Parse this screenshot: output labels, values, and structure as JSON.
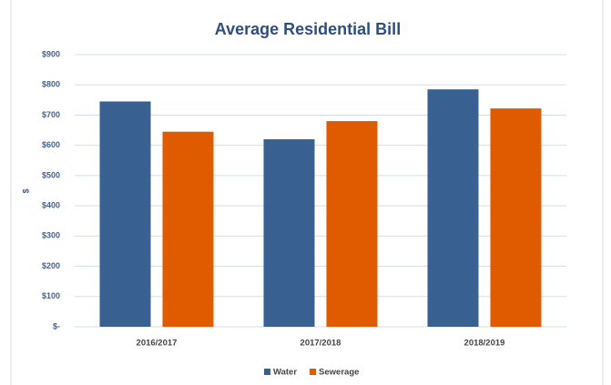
{
  "chart_data": {
    "type": "bar",
    "title": "Average Residential Bill",
    "y_label": "$",
    "categories": [
      "2016/2017",
      "2017/2018",
      "2018/2019"
    ],
    "series": [
      {
        "name": "Water",
        "color": "#386090",
        "values": [
          745,
          620,
          785
        ]
      },
      {
        "name": "Sewerage",
        "color": "#e05a00",
        "values": [
          645,
          680,
          722
        ]
      }
    ],
    "ylim": [
      0,
      900
    ],
    "yticks": [
      {
        "value": 0,
        "label": "$-"
      },
      {
        "value": 100,
        "label": "$100"
      },
      {
        "value": 200,
        "label": "$200"
      },
      {
        "value": 300,
        "label": "$300"
      },
      {
        "value": 400,
        "label": "$400"
      },
      {
        "value": 500,
        "label": "$500"
      },
      {
        "value": 600,
        "label": "$600"
      },
      {
        "value": 700,
        "label": "$700"
      },
      {
        "value": 800,
        "label": "$800"
      },
      {
        "value": 900,
        "label": "$900"
      }
    ],
    "grid": true,
    "legend": "bottom"
  }
}
